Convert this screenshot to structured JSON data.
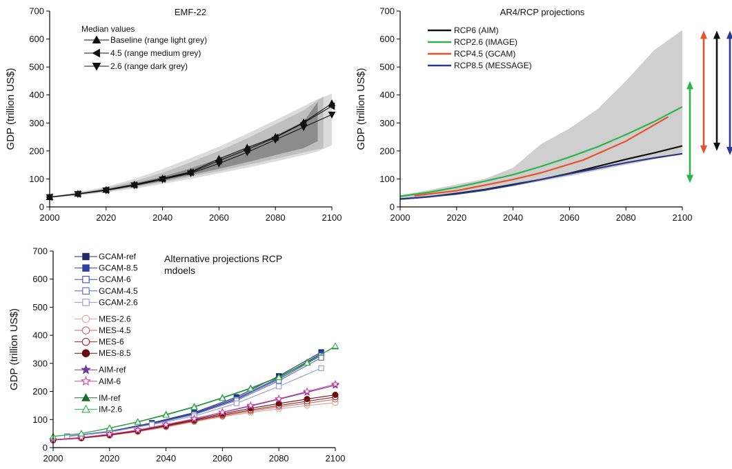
{
  "chart_data": [
    {
      "id": "emf22",
      "type": "line",
      "title": "EMF-22",
      "xlabel": "",
      "ylabel": "GDP (trillion US$)",
      "xlim": [
        2000,
        2100
      ],
      "ylim": [
        0,
        700
      ],
      "xticks": [
        2000,
        2020,
        2040,
        2060,
        2080,
        2100
      ],
      "yticks": [
        0,
        100,
        200,
        300,
        400,
        500,
        600,
        700
      ],
      "legend_title": "Median values",
      "legend_position": "top-left",
      "ranges": [
        {
          "color": "#dcdcdc",
          "x": [
            2000,
            2010,
            2020,
            2030,
            2040,
            2050,
            2060,
            2070,
            2080,
            2090,
            2095,
            2100
          ],
          "upper": [
            38,
            52,
            72,
            100,
            135,
            175,
            215,
            262,
            310,
            360,
            385,
            405
          ],
          "lower": [
            32,
            40,
            52,
            65,
            82,
            100,
            120,
            140,
            162,
            185,
            198,
            220
          ]
        },
        {
          "color": "#bfbfbf",
          "x": [
            2000,
            2010,
            2020,
            2030,
            2040,
            2050,
            2060,
            2070,
            2080,
            2090,
            2097
          ],
          "upper": [
            37,
            50,
            68,
            92,
            122,
            160,
            200,
            245,
            295,
            345,
            395
          ],
          "lower": [
            33,
            42,
            55,
            70,
            88,
            108,
            128,
            150,
            172,
            195,
            210
          ]
        },
        {
          "color": "#8c8c8c",
          "x": [
            2000,
            2010,
            2020,
            2030,
            2040,
            2050,
            2060,
            2070,
            2080,
            2090,
            2095
          ],
          "upper": [
            36,
            48,
            64,
            84,
            108,
            138,
            172,
            210,
            255,
            305,
            375
          ],
          "lower": [
            34,
            44,
            57,
            74,
            92,
            114,
            136,
            160,
            185,
            210,
            235
          ]
        }
      ],
      "series": [
        {
          "name": "Baseline (range light grey)",
          "marker": "triangle-up",
          "color": "#111111",
          "x": [
            2000,
            2010,
            2020,
            2030,
            2040,
            2050,
            2060,
            2070,
            2080,
            2090,
            2100
          ],
          "y": [
            35,
            47,
            61,
            80,
            102,
            125,
            172,
            212,
            250,
            302,
            370
          ]
        },
        {
          "name": "4.5 (range medium grey)",
          "marker": "triangle-left",
          "color": "#111111",
          "x": [
            2000,
            2010,
            2020,
            2030,
            2040,
            2050,
            2060,
            2070,
            2080,
            2090,
            2100
          ],
          "y": [
            35,
            46,
            60,
            78,
            100,
            123,
            165,
            205,
            248,
            300,
            360
          ]
        },
        {
          "name": "2.6 (range dark grey)",
          "marker": "triangle-down",
          "color": "#111111",
          "x": [
            2000,
            2010,
            2020,
            2030,
            2040,
            2050,
            2060,
            2070,
            2080,
            2090,
            2100
          ],
          "y": [
            35,
            46,
            59,
            77,
            98,
            120,
            155,
            195,
            240,
            285,
            330
          ]
        }
      ]
    },
    {
      "id": "ar4rcp",
      "type": "line",
      "title": "AR4/RCP projections",
      "xlabel": "",
      "ylabel": "GDP (trillion US$)",
      "xlim": [
        2000,
        2100
      ],
      "ylim": [
        0,
        700
      ],
      "xticks": [
        2000,
        2020,
        2040,
        2060,
        2080,
        2100
      ],
      "yticks": [
        0,
        100,
        200,
        300,
        400,
        500,
        600,
        700
      ],
      "legend_position": "top-left",
      "ranges": [
        {
          "color": "#cfcfcf",
          "x": [
            2000,
            2010,
            2020,
            2030,
            2040,
            2050,
            2060,
            2070,
            2080,
            2090,
            2100
          ],
          "upper": [
            42,
            60,
            80,
            100,
            140,
            225,
            280,
            350,
            450,
            560,
            632
          ],
          "lower": [
            28,
            36,
            46,
            60,
            75,
            92,
            110,
            130,
            150,
            170,
            190
          ]
        }
      ],
      "series": [
        {
          "name": "RCP6 (AIM)",
          "color": "#111111",
          "x": [
            2000,
            2010,
            2020,
            2030,
            2040,
            2050,
            2060,
            2070,
            2080,
            2090,
            2100
          ],
          "y": [
            28,
            36,
            48,
            62,
            80,
            98,
            120,
            145,
            170,
            193,
            218
          ]
        },
        {
          "name": "RCP2.6 (IMAGE)",
          "color": "#2db34a",
          "x": [
            2000,
            2010,
            2020,
            2030,
            2040,
            2050,
            2060,
            2070,
            2080,
            2090,
            2100
          ],
          "y": [
            38,
            52,
            70,
            92,
            115,
            145,
            178,
            215,
            258,
            305,
            358
          ]
        },
        {
          "name": "RCP4.5 (GCAM)",
          "color": "#e8512a",
          "x": [
            2005,
            2020,
            2030,
            2040,
            2050,
            2065,
            2080,
            2095
          ],
          "y": [
            40,
            58,
            78,
            98,
            122,
            168,
            235,
            322
          ]
        },
        {
          "name": "RCP8.5 (MESSAGE)",
          "color": "#2b3a8f",
          "x": [
            2000,
            2010,
            2020,
            2030,
            2040,
            2050,
            2060,
            2070,
            2080,
            2090,
            2100
          ],
          "y": [
            28,
            36,
            46,
            60,
            78,
            98,
            118,
            138,
            158,
            175,
            190
          ]
        }
      ],
      "range_arrows": [
        {
          "series": "RCP2.6 (IMAGE)",
          "color": "#2db34a",
          "y_low": 85,
          "y_high": 450
        },
        {
          "series": "RCP4.5 (GCAM)",
          "color": "#e8512a",
          "y_low": 190,
          "y_high": 630
        },
        {
          "series": "RCP6 (AIM)",
          "color": "#111111",
          "y_low": 200,
          "y_high": 630
        },
        {
          "series": "RCP8.5 (MESSAGE)",
          "color": "#2b3a8f",
          "y_low": 185,
          "y_high": 630
        }
      ]
    },
    {
      "id": "alt",
      "type": "line",
      "title": "",
      "annotation": "Alternative projections RCP\nmdoels",
      "xlabel": "",
      "ylabel": "GDP (trillion US$)",
      "xlim": [
        2000,
        2100
      ],
      "ylim": [
        0,
        700
      ],
      "xticks": [
        2000,
        2020,
        2040,
        2060,
        2080,
        2100
      ],
      "yticks": [
        0,
        100,
        200,
        300,
        400,
        500,
        600,
        700
      ],
      "legend_position": "top-left",
      "series": [
        {
          "name": "GCAM-ref",
          "marker": "square",
          "filled": true,
          "color": "#1f2a6b",
          "x": [
            2005,
            2020,
            2035,
            2050,
            2065,
            2080,
            2095
          ],
          "y": [
            40,
            58,
            88,
            125,
            180,
            255,
            340
          ]
        },
        {
          "name": "GCAM-8.5",
          "marker": "square",
          "filled": true,
          "color": "#2f3f9e",
          "x": [
            2005,
            2020,
            2035,
            2050,
            2065,
            2080,
            2095
          ],
          "y": [
            40,
            57,
            86,
            122,
            175,
            248,
            335
          ]
        },
        {
          "name": "GCAM-6",
          "marker": "square",
          "filled": false,
          "color": "#3b4aa6",
          "x": [
            2005,
            2020,
            2035,
            2050,
            2065,
            2080,
            2095
          ],
          "y": [
            40,
            57,
            85,
            120,
            172,
            244,
            328
          ]
        },
        {
          "name": "GCAM-4.5",
          "marker": "square",
          "filled": false,
          "color": "#5566b5",
          "x": [
            2005,
            2020,
            2035,
            2050,
            2065,
            2080,
            2095
          ],
          "y": [
            40,
            56,
            84,
            118,
            168,
            238,
            320
          ]
        },
        {
          "name": "GCAM-2.6",
          "marker": "square",
          "filled": false,
          "color": "#8f9bd0",
          "x": [
            2005,
            2020,
            2035,
            2050,
            2065,
            2080,
            2095
          ],
          "y": [
            39,
            55,
            82,
            112,
            158,
            218,
            283
          ]
        },
        {
          "name": "MES-2.6",
          "marker": "circle",
          "filled": false,
          "color": "#e3a296",
          "x": [
            2000,
            2010,
            2020,
            2030,
            2040,
            2050,
            2060,
            2070,
            2080,
            2090,
            2100
          ],
          "y": [
            27,
            33,
            43,
            56,
            73,
            92,
            110,
            125,
            138,
            150,
            160
          ]
        },
        {
          "name": "MES-4.5",
          "marker": "circle",
          "filled": false,
          "color": "#c46b63",
          "x": [
            2000,
            2010,
            2020,
            2030,
            2040,
            2050,
            2060,
            2070,
            2080,
            2090,
            2100
          ],
          "y": [
            27,
            34,
            44,
            58,
            75,
            94,
            113,
            130,
            145,
            158,
            172
          ]
        },
        {
          "name": "MES-6",
          "marker": "circle",
          "filled": false,
          "color": "#a2231b",
          "x": [
            2000,
            2010,
            2020,
            2030,
            2040,
            2050,
            2060,
            2070,
            2080,
            2090,
            2100
          ],
          "y": [
            27,
            34,
            45,
            59,
            77,
            96,
            116,
            134,
            150,
            165,
            180
          ]
        },
        {
          "name": "MES-8.5",
          "marker": "circle",
          "filled": true,
          "color": "#6b0b0b",
          "x": [
            2000,
            2010,
            2020,
            2030,
            2040,
            2050,
            2060,
            2070,
            2080,
            2090,
            2100
          ],
          "y": [
            27,
            35,
            46,
            60,
            79,
            99,
            120,
            140,
            157,
            173,
            188
          ]
        },
        {
          "name": "AIM-ref",
          "marker": "star",
          "filled": true,
          "color": "#6a3d9a",
          "x": [
            2000,
            2010,
            2020,
            2030,
            2040,
            2050,
            2060,
            2070,
            2080,
            2090,
            2100
          ],
          "y": [
            28,
            36,
            48,
            62,
            81,
            102,
            125,
            148,
            172,
            197,
            222
          ]
        },
        {
          "name": "AIM-6",
          "marker": "star",
          "filled": false,
          "color": "#d4449b",
          "x": [
            2000,
            2010,
            2020,
            2030,
            2040,
            2050,
            2060,
            2070,
            2080,
            2090,
            2100
          ],
          "y": [
            28,
            36,
            48,
            63,
            82,
            103,
            126,
            150,
            174,
            200,
            226
          ]
        },
        {
          "name": "IM-ref",
          "marker": "triangle-up",
          "filled": true,
          "color": "#1a6b2e",
          "x": [
            2000,
            2010,
            2020,
            2030,
            2040,
            2050,
            2060,
            2070,
            2080,
            2090,
            2100
          ],
          "y": [
            40,
            50,
            70,
            92,
            118,
            146,
            178,
            212,
            252,
            304,
            360
          ]
        },
        {
          "name": "IM-2.6",
          "marker": "triangle-up",
          "filled": false,
          "color": "#2db34a",
          "x": [
            2000,
            2010,
            2020,
            2030,
            2040,
            2050,
            2060,
            2070,
            2080,
            2090,
            2100
          ],
          "y": [
            40,
            50,
            69,
            91,
            116,
            144,
            176,
            210,
            250,
            302,
            362
          ]
        }
      ]
    }
  ]
}
